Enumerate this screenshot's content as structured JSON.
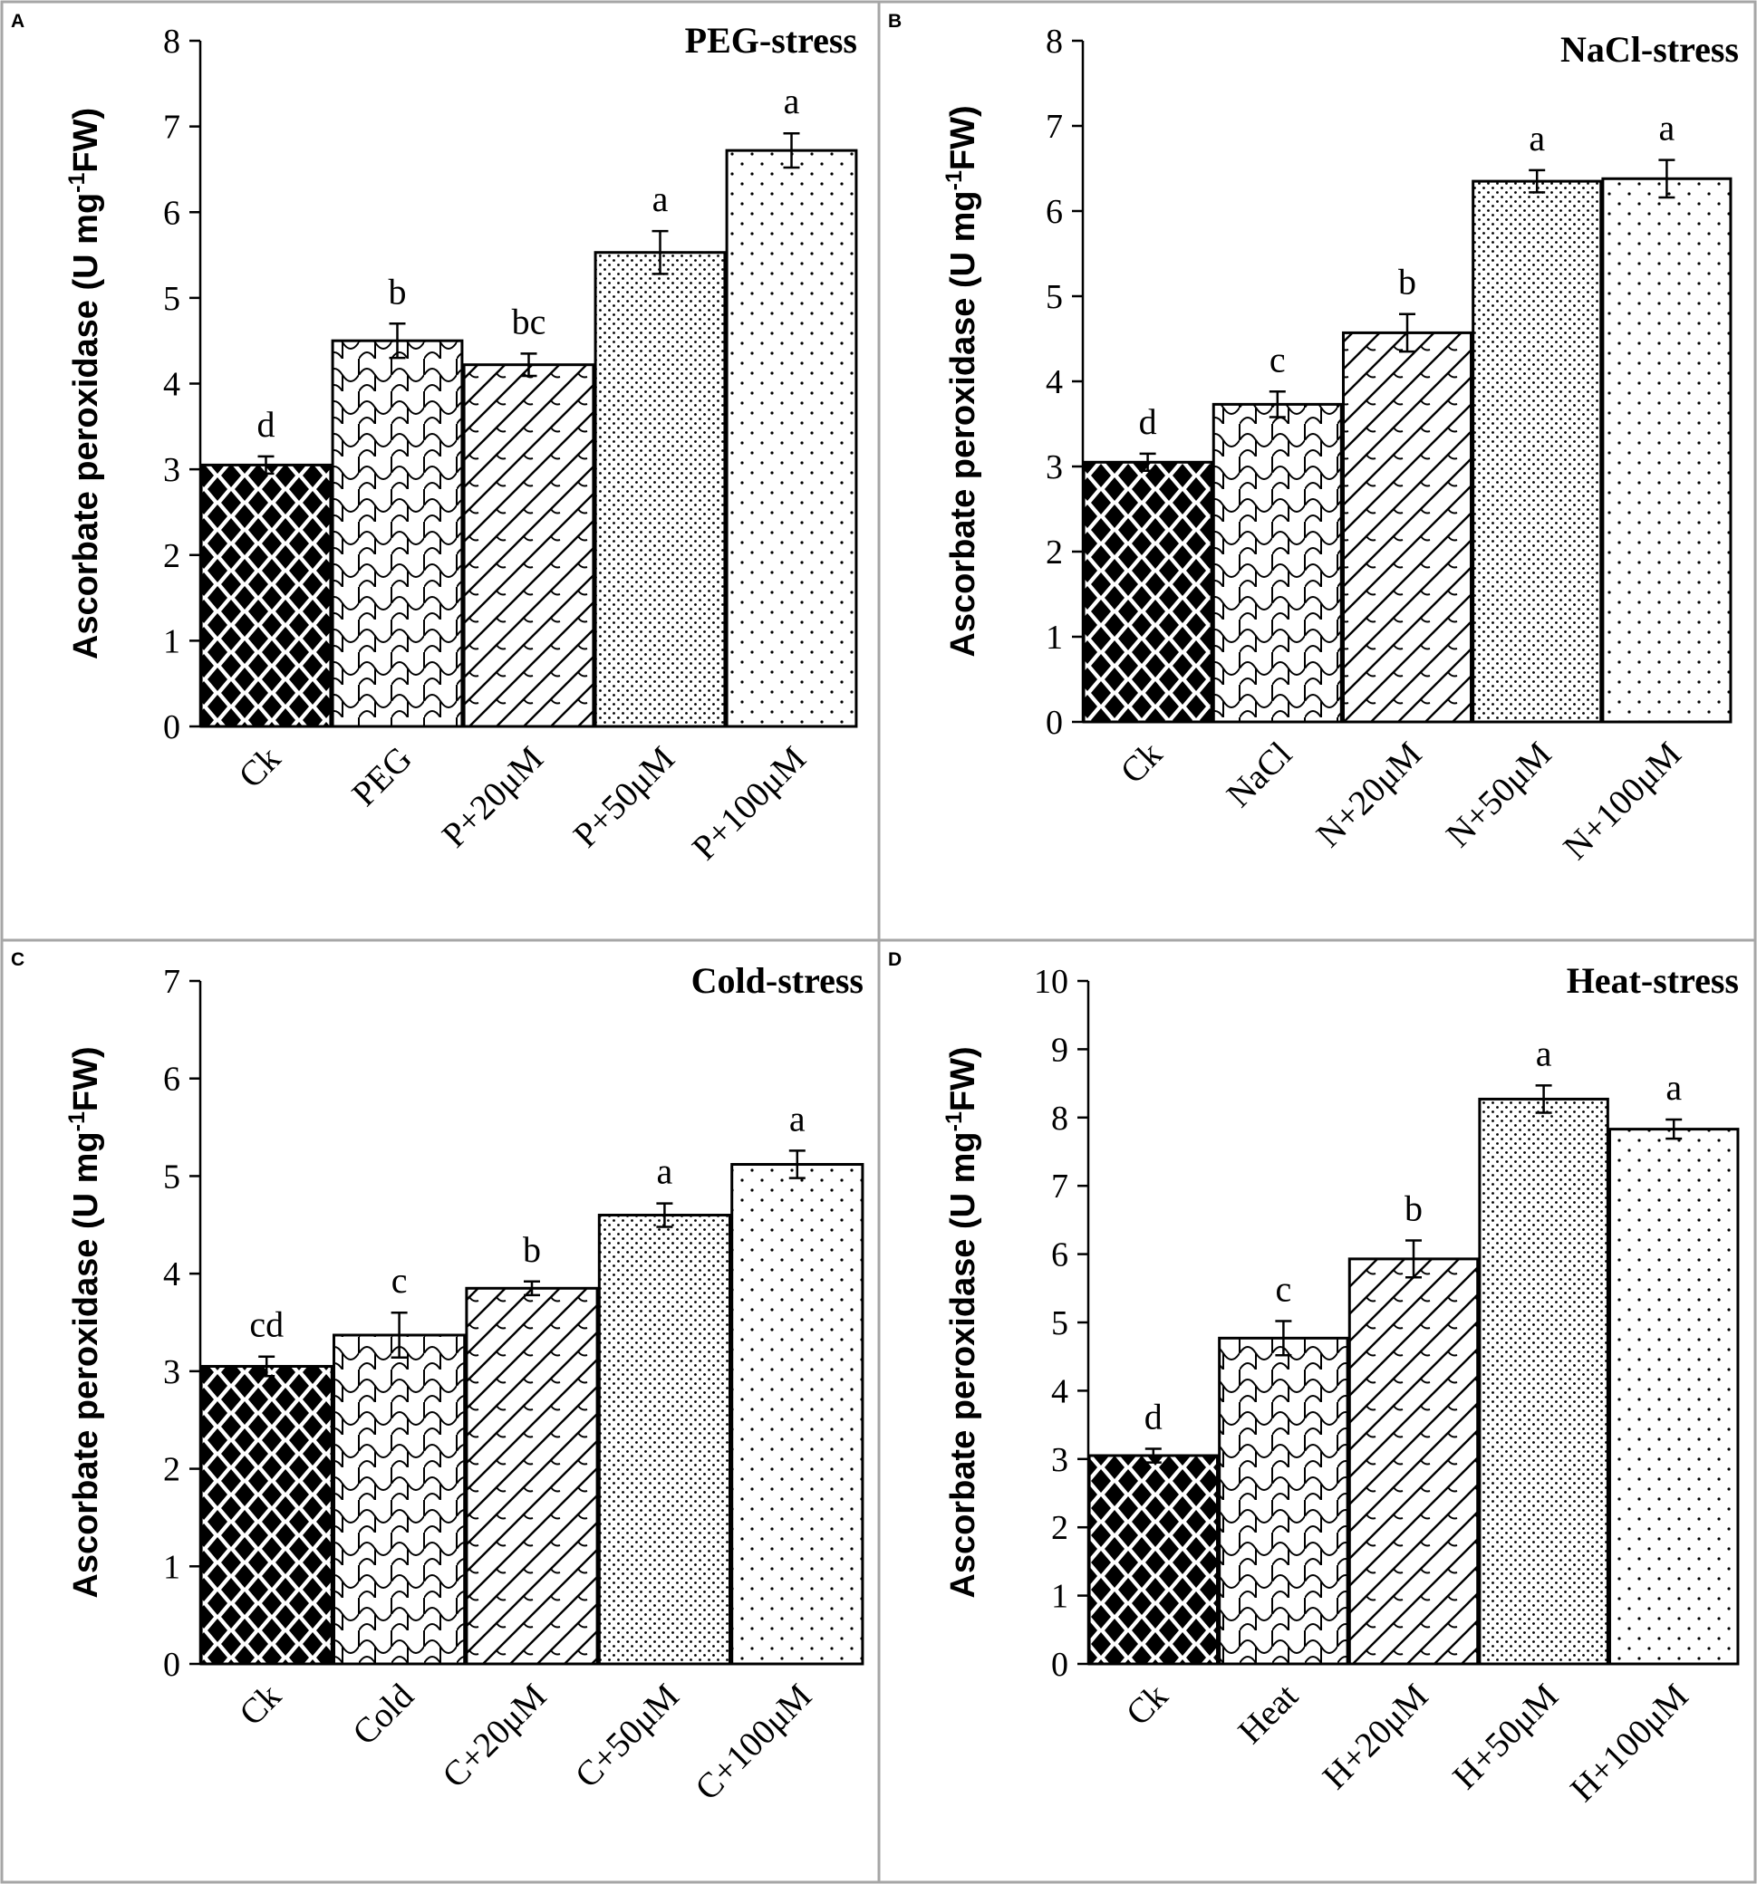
{
  "chart_data": [
    {
      "id": "A",
      "type": "bar",
      "panel_letter": "A",
      "title": "PEG-stress",
      "ylabel": "Ascorbate peroxidase (U mg-1FW)",
      "ylabel_parts": [
        "Ascorbate peroxidase (U mg",
        "-1",
        "FW)"
      ],
      "ylim": [
        0,
        8
      ],
      "yticks": [
        0,
        1,
        2,
        3,
        4,
        5,
        6,
        7,
        8
      ],
      "categories": [
        "Ck",
        "PEG",
        "P+20μM",
        "P+50μM",
        "P+100μM"
      ],
      "values": [
        3.05,
        4.5,
        4.22,
        5.53,
        6.72
      ],
      "errors": [
        0.1,
        0.2,
        0.13,
        0.25,
        0.2
      ],
      "letters": [
        "d",
        "b",
        "bc",
        "a",
        "a"
      ],
      "patterns": [
        "diamond",
        "wave",
        "diag",
        "dense-dot",
        "sparse-dot"
      ]
    },
    {
      "id": "B",
      "type": "bar",
      "panel_letter": "B",
      "title": "NaCl-stress",
      "ylabel": "Ascorbate peroxidase (U mg-1FW)",
      "ylabel_parts": [
        "Ascorbate peroxidase (U mg",
        "-1",
        "FW)"
      ],
      "ylim": [
        0,
        8
      ],
      "yticks": [
        0,
        1,
        2,
        3,
        4,
        5,
        6,
        7,
        8
      ],
      "categories": [
        "Ck",
        "NaCl",
        "N+20μM",
        "N+50μM",
        "N+100μM"
      ],
      "values": [
        3.05,
        3.73,
        4.57,
        6.35,
        6.38
      ],
      "errors": [
        0.1,
        0.15,
        0.22,
        0.13,
        0.22
      ],
      "letters": [
        "d",
        "c",
        "b",
        "a",
        "a"
      ],
      "patterns": [
        "diamond",
        "wave",
        "diag",
        "dense-dot",
        "sparse-dot"
      ]
    },
    {
      "id": "C",
      "type": "bar",
      "panel_letter": "C",
      "title": "Cold-stress",
      "ylabel": "Ascorbate peroxidase (U mg-1FW)",
      "ylabel_parts": [
        "Ascorbate peroxidase (U mg",
        "-1",
        "FW)"
      ],
      "ylim": [
        0,
        7
      ],
      "yticks": [
        0,
        1,
        2,
        3,
        4,
        5,
        6,
        7
      ],
      "categories": [
        "Ck",
        "Cold",
        "C+20μM",
        "C+50μM",
        "C+100μM"
      ],
      "values": [
        3.05,
        3.37,
        3.85,
        4.6,
        5.12
      ],
      "errors": [
        0.1,
        0.23,
        0.07,
        0.12,
        0.14
      ],
      "letters": [
        "cd",
        "c",
        "b",
        "a",
        "a"
      ],
      "patterns": [
        "diamond",
        "wave",
        "diag",
        "dense-dot",
        "sparse-dot"
      ]
    },
    {
      "id": "D",
      "type": "bar",
      "panel_letter": "D",
      "title": "Heat-stress",
      "ylabel": "Ascorbate peroxidase (U mg-1FW)",
      "ylabel_parts": [
        "Ascorbate peroxidase (U mg",
        "-1",
        "FW)"
      ],
      "ylim": [
        0,
        10
      ],
      "yticks": [
        0,
        1,
        2,
        3,
        4,
        5,
        6,
        7,
        8,
        9,
        10
      ],
      "categories": [
        "Ck",
        "Heat",
        "H+20μM",
        "H+50μM",
        "H+100μM"
      ],
      "values": [
        3.05,
        4.77,
        5.93,
        8.27,
        7.83
      ],
      "errors": [
        0.1,
        0.25,
        0.27,
        0.2,
        0.14
      ],
      "letters": [
        "d",
        "c",
        "b",
        "a",
        "a"
      ],
      "patterns": [
        "diamond",
        "wave",
        "diag",
        "dense-dot",
        "sparse-dot"
      ]
    }
  ]
}
